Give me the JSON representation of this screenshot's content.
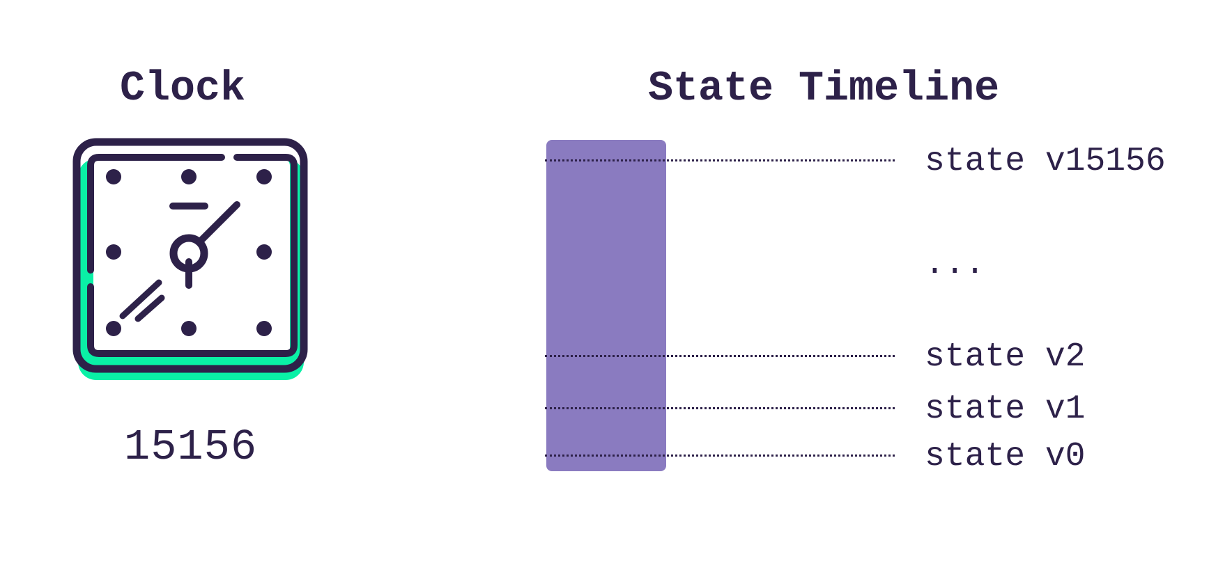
{
  "clock": {
    "title": "Clock",
    "counter": "15156",
    "icon": "clock-icon"
  },
  "timeline": {
    "title": "State Timeline",
    "states": [
      {
        "label": "state v15156"
      },
      {
        "label": "..."
      },
      {
        "label": "state v2"
      },
      {
        "label": "state v1"
      },
      {
        "label": "state v0"
      }
    ]
  },
  "colors": {
    "ink": "#2d2149",
    "accent_green": "#0af0a6",
    "bar_purple": "#8a7bc0",
    "background": "#ffffff"
  }
}
